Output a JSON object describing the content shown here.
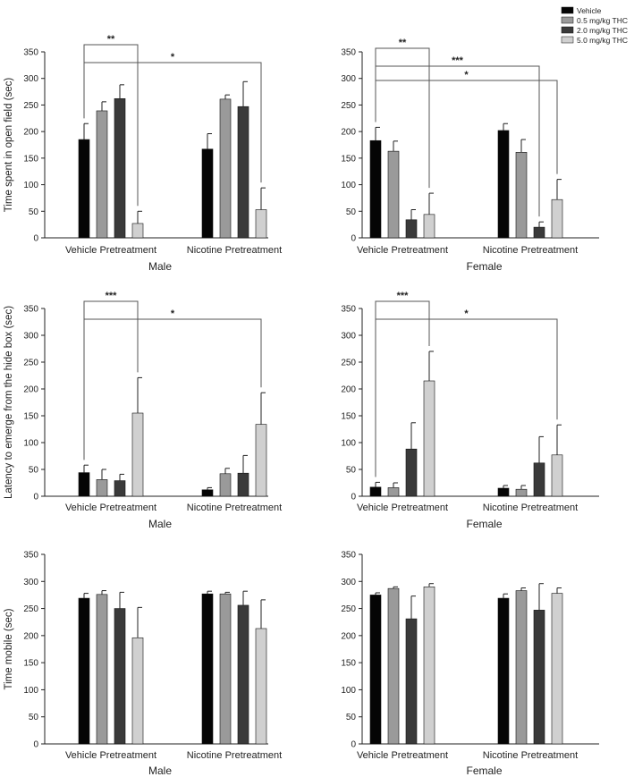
{
  "legend": {
    "placement": "top-right",
    "entries": [
      {
        "label": "Vehicle",
        "color": "#050505"
      },
      {
        "label": "0.5 mg/kg THC",
        "color": "#9a9a9a"
      },
      {
        "label": "2.0 mg/kg THC",
        "color": "#3a3a3a"
      },
      {
        "label": "5.0 mg/kg THC",
        "color": "#d0d0d0"
      }
    ]
  },
  "chart_data": [
    {
      "type": "bar",
      "panel": "male-open-field",
      "ylabel": "Time spent in open field (sec)",
      "xlabel": "Male",
      "ylim": [
        0,
        350
      ],
      "yticks": [
        0,
        50,
        100,
        150,
        200,
        250,
        300,
        350
      ],
      "categories": [
        "Vehicle Pretreatment",
        "Nicotine Pretreatment"
      ],
      "series": [
        {
          "name": "Vehicle",
          "values": [
            185,
            167
          ],
          "errors": [
            30,
            29
          ]
        },
        {
          "name": "0.5 mg/kg THC",
          "values": [
            239,
            261
          ],
          "errors": [
            17,
            8
          ]
        },
        {
          "name": "2.0 mg/kg THC",
          "values": [
            262,
            247
          ],
          "errors": [
            26,
            47
          ]
        },
        {
          "name": "5.0 mg/kg THC",
          "values": [
            27,
            53
          ],
          "errors": [
            23,
            41
          ]
        }
      ],
      "annotations": [
        {
          "text": "**",
          "from": [
            0,
            0
          ],
          "to": [
            0,
            3
          ]
        },
        {
          "text": "*",
          "from": [
            0,
            0
          ],
          "to": [
            1,
            3
          ]
        }
      ]
    },
    {
      "type": "bar",
      "panel": "female-open-field",
      "ylabel": "",
      "xlabel": "Female",
      "ylim": [
        0,
        350
      ],
      "yticks": [
        0,
        50,
        100,
        150,
        200,
        250,
        300,
        350
      ],
      "categories": [
        "Vehicle Pretreatment",
        "Nicotine Pretreatment"
      ],
      "series": [
        {
          "name": "Vehicle",
          "values": [
            183,
            202
          ],
          "errors": [
            25,
            13
          ]
        },
        {
          "name": "0.5 mg/kg THC",
          "values": [
            163,
            161
          ],
          "errors": [
            19,
            24
          ]
        },
        {
          "name": "2.0 mg/kg THC",
          "values": [
            34,
            20
          ],
          "errors": [
            19,
            10
          ]
        },
        {
          "name": "5.0 mg/kg THC",
          "values": [
            44,
            72
          ],
          "errors": [
            40,
            38
          ]
        }
      ],
      "annotations": [
        {
          "text": "**",
          "from": [
            0,
            0
          ],
          "to": [
            0,
            3
          ]
        },
        {
          "text": "***",
          "from": [
            0,
            0
          ],
          "to": [
            1,
            2
          ]
        },
        {
          "text": "*",
          "from": [
            0,
            0
          ],
          "to": [
            1,
            3
          ]
        }
      ]
    },
    {
      "type": "bar",
      "panel": "male-hide-box",
      "ylabel": "Latency to emerge from the hide box (sec)",
      "xlabel": "Male",
      "ylim": [
        0,
        350
      ],
      "yticks": [
        0,
        50,
        100,
        150,
        200,
        250,
        300,
        350
      ],
      "categories": [
        "Vehicle Pretreatment",
        "Nicotine Pretreatment"
      ],
      "series": [
        {
          "name": "Vehicle",
          "values": [
            44,
            12
          ],
          "errors": [
            14,
            4
          ]
        },
        {
          "name": "0.5 mg/kg THC",
          "values": [
            31,
            42
          ],
          "errors": [
            19,
            10
          ]
        },
        {
          "name": "2.0 mg/kg THC",
          "values": [
            29,
            43
          ],
          "errors": [
            12,
            33
          ]
        },
        {
          "name": "5.0 mg/kg THC",
          "values": [
            155,
            134
          ],
          "errors": [
            66,
            59
          ]
        }
      ],
      "annotations": [
        {
          "text": "***",
          "from": [
            0,
            0
          ],
          "to": [
            0,
            3
          ]
        },
        {
          "text": "*",
          "from": [
            0,
            0
          ],
          "to": [
            1,
            3
          ]
        }
      ]
    },
    {
      "type": "bar",
      "panel": "female-hide-box",
      "ylabel": "",
      "xlabel": "Female",
      "ylim": [
        0,
        350
      ],
      "yticks": [
        0,
        50,
        100,
        150,
        200,
        250,
        300,
        350
      ],
      "categories": [
        "Vehicle Pretreatment",
        "Nicotine Pretreatment"
      ],
      "series": [
        {
          "name": "Vehicle",
          "values": [
            17,
            15
          ],
          "errors": [
            9,
            5
          ]
        },
        {
          "name": "0.5 mg/kg THC",
          "values": [
            16,
            13
          ],
          "errors": [
            9,
            7
          ]
        },
        {
          "name": "2.0 mg/kg THC",
          "values": [
            88,
            62
          ],
          "errors": [
            49,
            49
          ]
        },
        {
          "name": "5.0 mg/kg THC",
          "values": [
            215,
            77
          ],
          "errors": [
            55,
            56
          ]
        }
      ],
      "annotations": [
        {
          "text": "***",
          "from": [
            0,
            0
          ],
          "to": [
            0,
            3
          ]
        },
        {
          "text": "*",
          "from": [
            0,
            0
          ],
          "to": [
            1,
            3
          ]
        }
      ]
    },
    {
      "type": "bar",
      "panel": "male-time-mobile",
      "ylabel": "Time mobile (sec)",
      "xlabel": "Male",
      "ylim": [
        0,
        350
      ],
      "yticks": [
        0,
        50,
        100,
        150,
        200,
        250,
        300,
        350
      ],
      "categories": [
        "Vehicle Pretreatment",
        "Nicotine Pretreatment"
      ],
      "series": [
        {
          "name": "Vehicle",
          "values": [
            269,
            277
          ],
          "errors": [
            9,
            5
          ]
        },
        {
          "name": "0.5 mg/kg THC",
          "values": [
            276,
            277
          ],
          "errors": [
            7,
            3
          ]
        },
        {
          "name": "2.0 mg/kg THC",
          "values": [
            250,
            256
          ],
          "errors": [
            30,
            26
          ]
        },
        {
          "name": "5.0 mg/kg THC",
          "values": [
            196,
            213
          ],
          "errors": [
            56,
            53
          ]
        }
      ],
      "annotations": []
    },
    {
      "type": "bar",
      "panel": "female-time-mobile",
      "ylabel": "",
      "xlabel": "Female",
      "ylim": [
        0,
        350
      ],
      "yticks": [
        0,
        50,
        100,
        150,
        200,
        250,
        300,
        350
      ],
      "categories": [
        "Vehicle Pretreatment",
        "Nicotine Pretreatment"
      ],
      "series": [
        {
          "name": "Vehicle",
          "values": [
            275,
            269
          ],
          "errors": [
            4,
            8
          ]
        },
        {
          "name": "0.5 mg/kg THC",
          "values": [
            287,
            283
          ],
          "errors": [
            3,
            5
          ]
        },
        {
          "name": "2.0 mg/kg THC",
          "values": [
            231,
            247
          ],
          "errors": [
            42,
            49
          ]
        },
        {
          "name": "5.0 mg/kg THC",
          "values": [
            290,
            278
          ],
          "errors": [
            6,
            10
          ]
        }
      ],
      "annotations": []
    }
  ]
}
